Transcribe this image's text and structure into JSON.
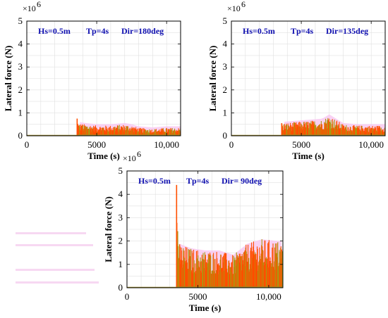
{
  "colors": {
    "signal_main": "#FF4F00",
    "signal_edge": "#A89A10",
    "baseline": "#9B8A2A",
    "pink_patch": "#F7C6F0",
    "annotation": "#1010B0",
    "grid": "#E0E0E0"
  },
  "chart_data": [
    {
      "type": "line",
      "annotation": {
        "hs": "Hs=0.5m",
        "tp": "Tp=4s",
        "dir": "Dir=180deg"
      },
      "xlabel": "Time (s)",
      "ylabel": "Lateral force (N)",
      "y_multiplier": "×10",
      "y_exponent": "6",
      "xlim": [
        0,
        11000
      ],
      "ylim": [
        0,
        5
      ],
      "x_ticks": [
        0,
        5000,
        10000
      ],
      "x_tick_labels": [
        "0",
        "5000",
        "10,000"
      ],
      "y_ticks": [
        0,
        1,
        2,
        3,
        4,
        5
      ],
      "y_tick_labels": [
        "0",
        "1",
        "2",
        "3",
        "4",
        "5"
      ],
      "grid": true,
      "series": [
        {
          "values_description_free": true,
          "x": [
            0,
            3600,
            3600,
            3700,
            4200,
            5000,
            6000,
            7000,
            7500,
            8000,
            9000,
            10000,
            11000
          ],
          "y": [
            0,
            0,
            0.75,
            0.55,
            0.5,
            0.45,
            0.45,
            0.5,
            0.45,
            0.35,
            0.3,
            0.35,
            0.35
          ]
        }
      ]
    },
    {
      "type": "line",
      "annotation": {
        "hs": "Hs=0.5m",
        "tp": "Tp=4s",
        "dir": "Dir=135deg"
      },
      "xlabel": "Time (s)",
      "ylabel": "Lateral force (N)",
      "y_multiplier": "×10",
      "y_exponent": "6",
      "xlim": [
        0,
        11000
      ],
      "ylim": [
        0,
        5
      ],
      "x_ticks": [
        0,
        5000,
        10000
      ],
      "x_tick_labels": [
        "0",
        "5000",
        "10,000"
      ],
      "y_ticks": [
        0,
        1,
        2,
        3,
        4,
        5
      ],
      "y_tick_labels": [
        "0",
        "1",
        "2",
        "3",
        "4",
        "5"
      ],
      "grid": true,
      "series": [
        {
          "x": [
            0,
            3600,
            3600,
            4500,
            5500,
            6500,
            7000,
            7500,
            8000,
            9000,
            10000,
            11000
          ],
          "y": [
            0,
            0,
            0.55,
            0.6,
            0.65,
            0.7,
            0.9,
            0.7,
            0.5,
            0.45,
            0.45,
            0.45
          ]
        }
      ]
    },
    {
      "type": "line",
      "annotation": {
        "hs": "Hs=0.5m",
        "tp": "Tp=4s",
        "dir": "Dir= 90deg"
      },
      "xlabel": "Time (s)",
      "ylabel": "Lateral force (N)",
      "y_multiplier": "×10",
      "y_exponent": "6",
      "xlim": [
        0,
        11000
      ],
      "ylim": [
        0,
        5
      ],
      "x_ticks": [
        0,
        5000,
        10000
      ],
      "x_tick_labels": [
        "0",
        "5000",
        "10,000"
      ],
      "y_ticks": [
        0,
        1,
        2,
        3,
        4,
        5
      ],
      "y_tick_labels": [
        "0",
        "1",
        "2",
        "3",
        "4",
        "5"
      ],
      "grid": true,
      "series": [
        {
          "x": [
            0,
            3500,
            3500,
            3600,
            3700,
            4500,
            5500,
            6500,
            7500,
            8500,
            9500,
            11000
          ],
          "y": [
            0,
            0,
            4.4,
            2.8,
            1.9,
            1.7,
            1.6,
            1.6,
            1.4,
            1.9,
            2.1,
            2.0
          ]
        }
      ]
    }
  ]
}
